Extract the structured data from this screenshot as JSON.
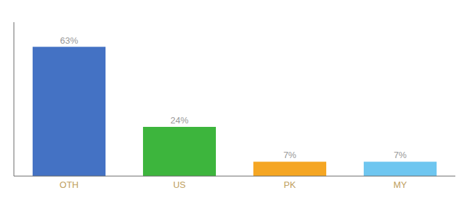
{
  "chart_data": {
    "type": "bar",
    "categories": [
      "OTH",
      "US",
      "PK",
      "MY"
    ],
    "values": [
      63,
      24,
      7,
      7
    ],
    "value_labels": [
      "63%",
      "24%",
      "7%",
      "7%"
    ],
    "colors": [
      "#4472c4",
      "#3db53d",
      "#f5a623",
      "#6ec6f0"
    ],
    "ylim": [
      0,
      75
    ],
    "data_labels": true,
    "tick_labels": "x",
    "grid": false
  }
}
